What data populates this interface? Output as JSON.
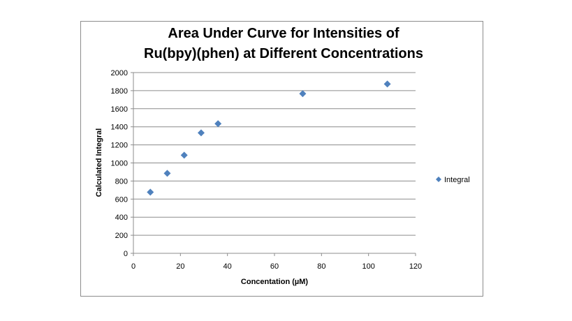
{
  "chart_data": {
    "type": "scatter",
    "title_lines": [
      "Area Under Curve for Intensities of",
      "Ru(bpy)(phen) at Different Concentrations"
    ],
    "xlabel": "Concentation (µM)",
    "ylabel": "Calculated Integral",
    "xlim": [
      0,
      120
    ],
    "ylim": [
      0,
      2000
    ],
    "xticks": [
      0,
      20,
      40,
      60,
      80,
      100,
      120
    ],
    "yticks": [
      0,
      200,
      400,
      600,
      800,
      1000,
      1200,
      1400,
      1600,
      1800,
      2000
    ],
    "grid": "horizontal",
    "legend_position": "right",
    "series": [
      {
        "name": "Integral",
        "color": "#4f81bd",
        "marker": "diamond",
        "x": [
          7.2,
          14.4,
          21.6,
          28.8,
          36,
          72,
          108
        ],
        "y": [
          677,
          885,
          1086,
          1333,
          1434,
          1766,
          1874
        ]
      }
    ]
  }
}
